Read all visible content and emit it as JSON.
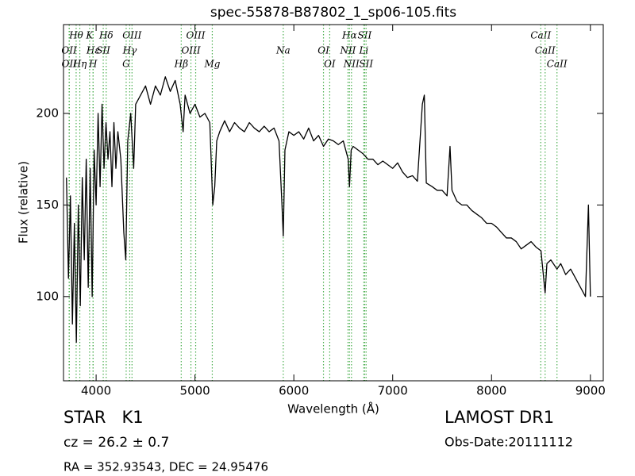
{
  "chart_data": {
    "type": "line",
    "title": "spec-55878-B87802_1_sp06-105.fits",
    "x_label": "Wavelength (Å)",
    "y_label": "Flux (relative)",
    "color": "#000000",
    "line_color": "#4caf50",
    "xlim": [
      3670,
      9130
    ],
    "ylim": [
      54,
      248.5
    ],
    "xticks": [
      4000,
      5000,
      6000,
      7000,
      8000,
      9000
    ],
    "yticks": [
      100,
      150,
      200
    ],
    "x": [
      3700,
      3720,
      3740,
      3760,
      3780,
      3800,
      3820,
      3840,
      3860,
      3880,
      3900,
      3920,
      3940,
      3960,
      3980,
      4000,
      4020,
      4040,
      4060,
      4080,
      4100,
      4120,
      4140,
      4160,
      4180,
      4200,
      4220,
      4250,
      4280,
      4300,
      4320,
      4350,
      4380,
      4400,
      4450,
      4500,
      4550,
      4600,
      4650,
      4700,
      4750,
      4800,
      4850,
      4880,
      4900,
      4950,
      5000,
      5050,
      5100,
      5150,
      5180,
      5200,
      5220,
      5250,
      5300,
      5350,
      5400,
      5450,
      5500,
      5550,
      5600,
      5650,
      5700,
      5750,
      5800,
      5850,
      5880,
      5893,
      5910,
      5950,
      6000,
      6050,
      6100,
      6150,
      6200,
      6250,
      6300,
      6350,
      6400,
      6450,
      6500,
      6550,
      6563,
      6580,
      6600,
      6650,
      6700,
      6750,
      6800,
      6850,
      6900,
      6950,
      7000,
      7050,
      7100,
      7150,
      7200,
      7250,
      7300,
      7320,
      7340,
      7400,
      7450,
      7500,
      7550,
      7580,
      7600,
      7650,
      7700,
      7750,
      7800,
      7850,
      7900,
      7950,
      8000,
      8050,
      8100,
      8150,
      8200,
      8250,
      8300,
      8350,
      8400,
      8450,
      8500,
      8542,
      8560,
      8600,
      8662,
      8700,
      8750,
      8800,
      8850,
      8900,
      8950,
      8980,
      9000
    ],
    "values": [
      165,
      110,
      155,
      85,
      140,
      75,
      150,
      95,
      165,
      120,
      175,
      105,
      170,
      100,
      180,
      150,
      200,
      160,
      205,
      170,
      195,
      175,
      190,
      160,
      195,
      170,
      190,
      175,
      135,
      120,
      185,
      200,
      170,
      205,
      210,
      215,
      205,
      215,
      210,
      220,
      212,
      218,
      205,
      190,
      210,
      200,
      205,
      198,
      200,
      195,
      150,
      160,
      185,
      190,
      196,
      190,
      195,
      192,
      190,
      195,
      192,
      190,
      193,
      190,
      192,
      185,
      150,
      133,
      180,
      190,
      188,
      190,
      186,
      192,
      185,
      188,
      182,
      186,
      185,
      183,
      185,
      175,
      160,
      180,
      182,
      180,
      178,
      175,
      175,
      172,
      174,
      172,
      170,
      173,
      168,
      165,
      166,
      163,
      205,
      210,
      162,
      160,
      158,
      158,
      155,
      182,
      158,
      152,
      150,
      150,
      147,
      145,
      143,
      140,
      140,
      138,
      135,
      132,
      132,
      130,
      126,
      128,
      130,
      127,
      125,
      102,
      118,
      120,
      115,
      118,
      112,
      115,
      110,
      105,
      100,
      150,
      100
    ],
    "line_rows": [
      [
        {
          "label": "Hθ",
          "wavelength": 3798
        },
        {
          "label": "K",
          "wavelength": 3934
        },
        {
          "label": "Hδ",
          "wavelength": 4102
        },
        {
          "label": "OIII",
          "wavelength": 4363
        },
        {
          "label": "OIII",
          "wavelength": 5007
        },
        {
          "label": "Hα",
          "wavelength": 6563
        },
        {
          "label": "SII",
          "wavelength": 6716
        },
        {
          "label": "CaII",
          "wavelength": 8498
        }
      ],
      [
        {
          "label": "OII",
          "wavelength": 3727
        },
        {
          "label": "Hε",
          "wavelength": 3970
        },
        {
          "label": "SII",
          "wavelength": 4072
        },
        {
          "label": "Hγ",
          "wavelength": 4340
        },
        {
          "label": "OIII",
          "wavelength": 4959
        },
        {
          "label": "Na",
          "wavelength": 5893
        },
        {
          "label": "OI",
          "wavelength": 6300
        },
        {
          "label": "NII",
          "wavelength": 6548
        },
        {
          "label": "Li",
          "wavelength": 6708
        },
        {
          "label": "CaII",
          "wavelength": 8542
        }
      ],
      [
        {
          "label": "OII",
          "wavelength": 3729
        },
        {
          "label": "Hη",
          "wavelength": 3835
        },
        {
          "label": "H",
          "wavelength": 3969
        },
        {
          "label": "G",
          "wavelength": 4304
        },
        {
          "label": "Hβ",
          "wavelength": 4861
        },
        {
          "label": "Mg",
          "wavelength": 5175
        },
        {
          "label": "OI",
          "wavelength": 6363
        },
        {
          "label": "NII",
          "wavelength": 6583
        },
        {
          "label": "SII",
          "wavelength": 6731
        },
        {
          "label": "CaII",
          "wavelength": 8662
        }
      ]
    ],
    "left_notes": [
      "STAR   K1",
      "cz = 26.2 ± 0.7",
      "RA = 352.93543, DEC = 24.95476"
    ],
    "right_notes": [
      "LAMOST DR1",
      "Obs-Date:20111112"
    ]
  }
}
